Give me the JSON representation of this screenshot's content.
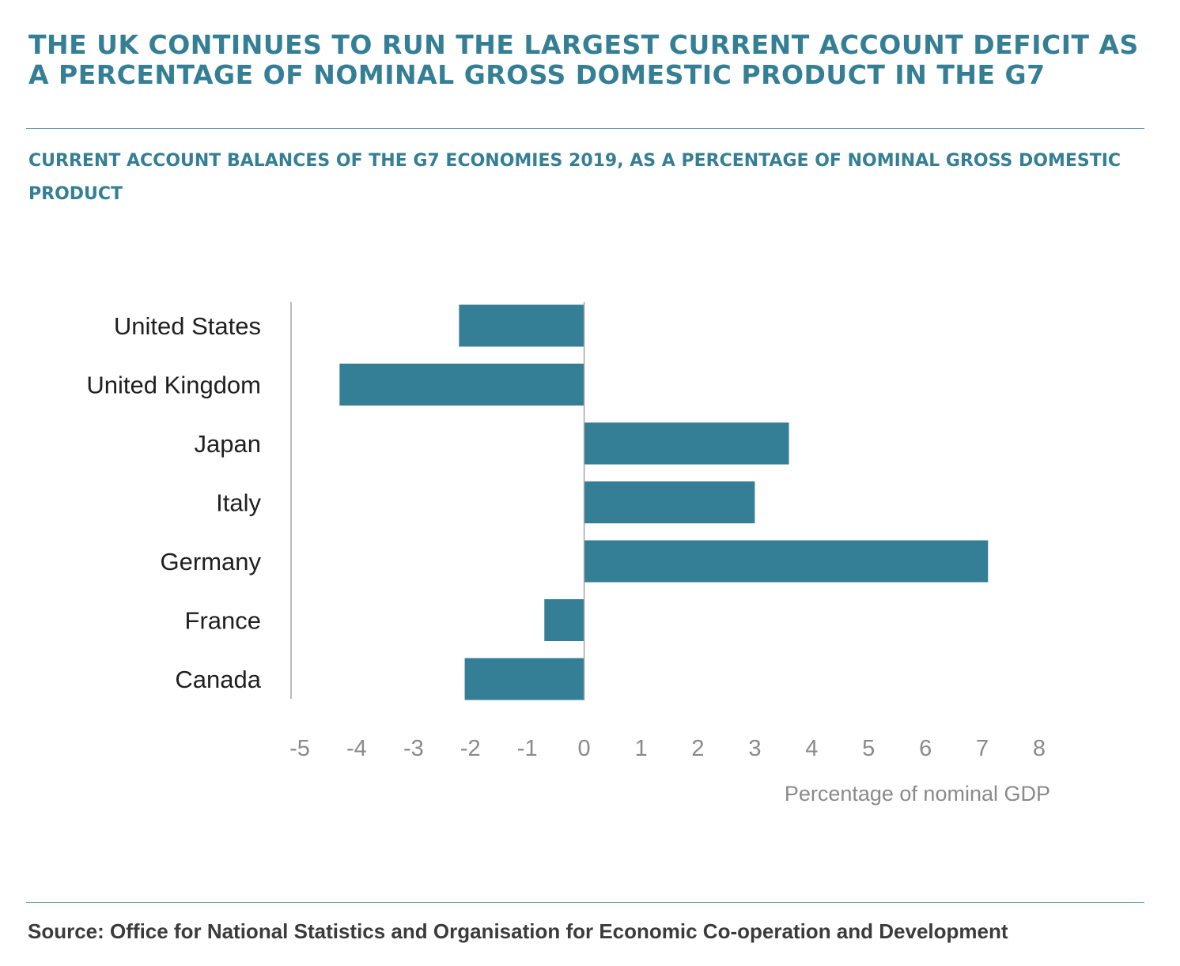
{
  "header": {
    "title": "THE UK CONTINUES TO RUN THE LARGEST CURRENT ACCOUNT DEFICIT AS A PERCENTAGE OF NOMINAL GROSS DOMESTIC PRODUCT IN THE G7"
  },
  "footer": {
    "source": "Source: Office for National Statistics and Organisation for Economic Co-operation and Development"
  },
  "chart_data": {
    "type": "bar",
    "orientation": "horizontal",
    "title": "CURRENT ACCOUNT BALANCES OF THE G7 ECONOMIES 2019, AS A PERCENTAGE OF NOMINAL GROSS DOMESTIC PRODUCT",
    "categories": [
      "United States",
      "United Kingdom",
      "Japan",
      "Italy",
      "Germany",
      "France",
      "Canada"
    ],
    "values": [
      -2.2,
      -4.3,
      3.6,
      3.0,
      7.1,
      -0.7,
      -2.1
    ],
    "xlabel": "Percentage of nominal GDP",
    "ylabel": "",
    "xlim": [
      -5,
      8
    ],
    "xticks": [
      -5,
      -4,
      -3,
      -2,
      -1,
      0,
      1,
      2,
      3,
      4,
      5,
      6,
      7,
      8
    ],
    "xtick_labels": [
      "-5",
      "-4",
      "-3",
      "-2",
      "-1",
      "0",
      "1",
      "2",
      "3",
      "4",
      "5",
      "6",
      "7",
      "8"
    ],
    "grid": false,
    "legend": "none",
    "colors": {
      "bar": "#347f95",
      "heading": "#347f95",
      "axis_line": "#a6a6a6"
    }
  }
}
